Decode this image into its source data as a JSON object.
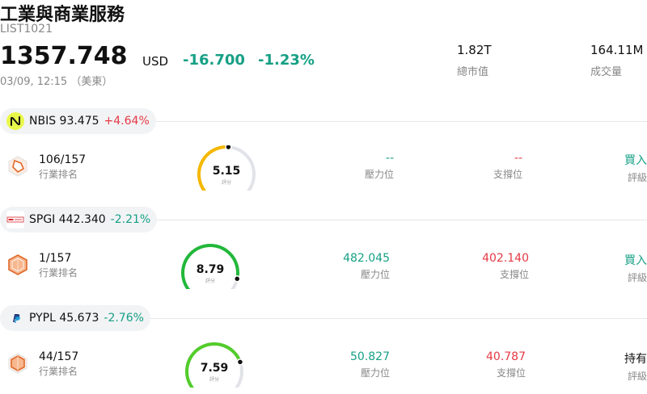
{
  "header": {
    "title": "工業與商業服務",
    "code": "LIST1021",
    "price": "1357.748",
    "currency": "USD",
    "change": "-16.700",
    "change_pct": "-1.23%",
    "time": "03/09, 12:15 （美東）"
  },
  "stats": [
    {
      "value": "1.82T",
      "label": "總市值"
    },
    {
      "value": "164.11M",
      "label": "成交量"
    }
  ],
  "colors": {
    "up": "#e53945",
    "down": "#16a085",
    "gauge_track": "#e2e3e8"
  },
  "items": [
    {
      "symbol": "NBIS",
      "price": "93.475",
      "change_pct": "+4.64%",
      "direction": "up",
      "logo_icon": "nbis-logo-icon",
      "rank": "106/157",
      "rank_label": "行業排名",
      "score": "5.15",
      "score_fraction": 0.515,
      "score_color": "#f5b800",
      "score_label": "評分",
      "resistance": "--",
      "resistance_label": "壓力位",
      "support": "--",
      "support_label": "支撐位",
      "rating": "買入",
      "rating_color": "#16a085",
      "rating_label": "評級"
    },
    {
      "symbol": "SPGI",
      "price": "442.340",
      "change_pct": "-2.21%",
      "direction": "down",
      "logo_icon": "spgi-logo-icon",
      "rank": "1/157",
      "rank_label": "行業排名",
      "score": "8.79",
      "score_fraction": 0.879,
      "score_color": "#22b83a",
      "score_label": "評分",
      "resistance": "482.045",
      "resistance_label": "壓力位",
      "support": "402.140",
      "support_label": "支撐位",
      "rating": "買入",
      "rating_color": "#16a085",
      "rating_label": "評級"
    },
    {
      "symbol": "PYPL",
      "price": "45.673",
      "change_pct": "-2.76%",
      "direction": "down",
      "logo_icon": "paypal-logo-icon",
      "rank": "44/157",
      "rank_label": "行業排名",
      "score": "7.59",
      "score_fraction": 0.759,
      "score_color": "#52cc2a",
      "score_label": "評分",
      "resistance": "50.827",
      "resistance_label": "壓力位",
      "support": "40.787",
      "support_label": "支撐位",
      "rating": "持有",
      "rating_color": "#111111",
      "rating_label": "評級"
    }
  ]
}
